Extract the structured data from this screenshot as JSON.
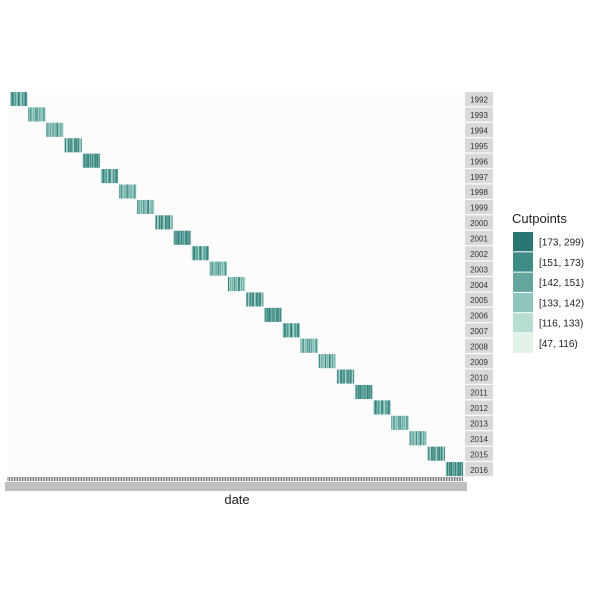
{
  "chart_data": {
    "type": "heatmap",
    "title": "",
    "xlabel": "date",
    "ylabel": "",
    "facets": [
      "1992",
      "1993",
      "1994",
      "1995",
      "1996",
      "1997",
      "1998",
      "1999",
      "2000",
      "2001",
      "2002",
      "2003",
      "2004",
      "2005",
      "2006",
      "2007",
      "2008",
      "2009",
      "2010",
      "2011",
      "2012",
      "2013",
      "2014",
      "2015",
      "2016"
    ],
    "legend": {
      "title": "Cutpoints",
      "placement": "right",
      "items": [
        {
          "label": "[173, 299)",
          "color": "#2b7673"
        },
        {
          "label": "[151, 173)",
          "color": "#3f8c87"
        },
        {
          "label": "[142, 151)",
          "color": "#63a6a0"
        },
        {
          "label": "[133, 142)",
          "color": "#8ec6bd"
        },
        {
          "label": "[116, 133)",
          "color": "#b8ddd3"
        },
        {
          "label": "[47, 116)",
          "color": "#e3f2e6"
        }
      ]
    },
    "cell_pattern": [
      4,
      3,
      2,
      1,
      0,
      1,
      2,
      3,
      2,
      1,
      2,
      3,
      4,
      2,
      1,
      0,
      1,
      2,
      3,
      4,
      3,
      2,
      1,
      2,
      3,
      2,
      1,
      0,
      1,
      2
    ]
  }
}
